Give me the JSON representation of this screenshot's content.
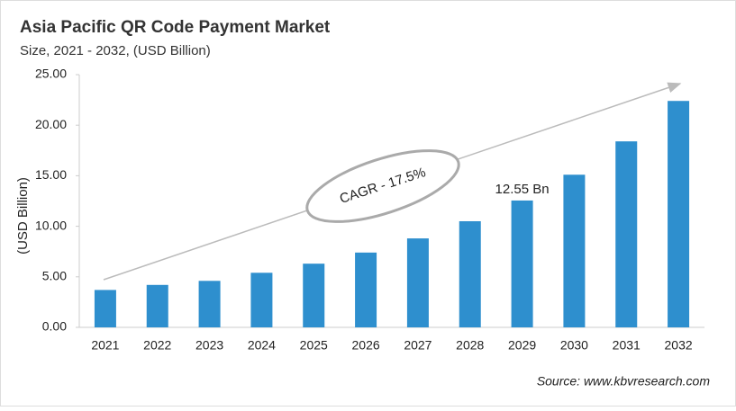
{
  "chart_data": {
    "type": "bar",
    "title": "Asia Pacific QR Code Payment Market",
    "subtitle": "Size, 2021 - 2032, (USD Billion)",
    "y_label": "(USD Billion)",
    "annotation": "CAGR - 17.5%",
    "source": "Source: www.kbvresearch.com",
    "categories": [
      "2021",
      "2022",
      "2023",
      "2024",
      "2025",
      "2026",
      "2027",
      "2028",
      "2029",
      "2030",
      "2031",
      "2032"
    ],
    "values": [
      3.7,
      4.2,
      4.6,
      5.4,
      6.3,
      7.4,
      8.8,
      10.5,
      12.55,
      15.1,
      18.4,
      22.4
    ],
    "value_labels": [
      null,
      null,
      null,
      null,
      null,
      null,
      null,
      null,
      "12.55 Bn",
      null,
      null,
      null
    ],
    "color": "#2e8fce",
    "ylim": [
      0,
      25
    ],
    "yticks": [
      {
        "value": 0,
        "label": "0.00"
      },
      {
        "value": 5,
        "label": "5.00"
      },
      {
        "value": 10,
        "label": "10.00"
      },
      {
        "value": 15,
        "label": "15.00"
      },
      {
        "value": 20,
        "label": "20.00"
      },
      {
        "value": 25,
        "label": "25.00"
      }
    ],
    "grid": false
  }
}
